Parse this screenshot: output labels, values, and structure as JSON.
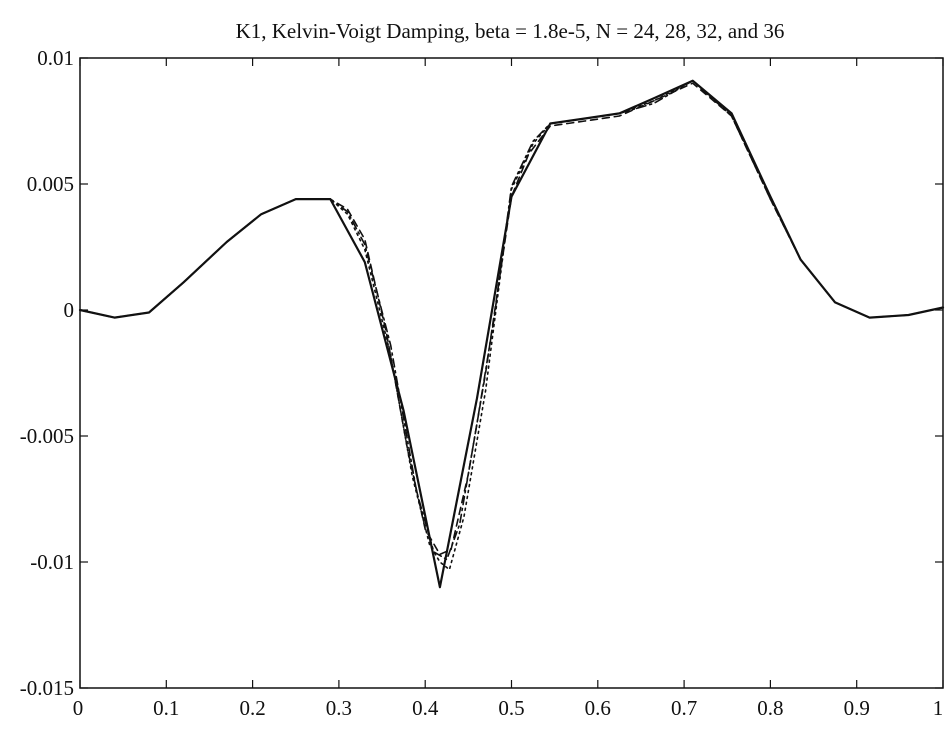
{
  "chart_data": {
    "type": "line",
    "title": "K1, Kelvin-Voigt Damping, beta = 1.8e-5, N = 24, 28, 32, and 36",
    "xlabel": "",
    "ylabel": "",
    "xlim": [
      0,
      1
    ],
    "ylim": [
      -0.015,
      0.01
    ],
    "grid": false,
    "x_ticks": [
      0,
      0.1,
      0.2,
      0.3,
      0.4,
      0.5,
      0.6,
      0.7,
      0.8,
      0.9,
      1
    ],
    "x_tick_labels": [
      "0",
      "0.1",
      "0.2",
      "0.3",
      "0.4",
      "0.5",
      "0.6",
      "0.7",
      "0.8",
      "0.9",
      "1"
    ],
    "y_ticks": [
      0.01,
      0.005,
      0,
      -0.005,
      -0.01,
      -0.015
    ],
    "y_tick_labels": [
      "0.01",
      "0.005",
      "0",
      "-0.005",
      "-0.01",
      "-0.015"
    ],
    "series": [
      {
        "style": "solid",
        "color": "#111111",
        "x": [
          0,
          0.04,
          0.08,
          0.12,
          0.17,
          0.21,
          0.25,
          0.29,
          0.33,
          0.375,
          0.417,
          0.46,
          0.5,
          0.545,
          0.585,
          0.625,
          0.665,
          0.71,
          0.755,
          0.8,
          0.835,
          0.875,
          0.915,
          0.96,
          1.0
        ],
        "y": [
          0.0,
          -0.0003,
          -0.0001,
          0.0011,
          0.0027,
          0.0038,
          0.0044,
          0.0044,
          0.0019,
          -0.004,
          -0.011,
          -0.0035,
          0.0045,
          0.0074,
          0.0076,
          0.0078,
          0.0084,
          0.0091,
          0.0078,
          0.0045,
          0.002,
          0.0003,
          -0.0003,
          -0.0002,
          0.0001
        ]
      },
      {
        "style": "dashed",
        "color": "#111111",
        "x": [
          0,
          0.04,
          0.08,
          0.12,
          0.17,
          0.21,
          0.25,
          0.29,
          0.31,
          0.33,
          0.355,
          0.38,
          0.4,
          0.417,
          0.43,
          0.45,
          0.47,
          0.5,
          0.52,
          0.545,
          0.585,
          0.625,
          0.665,
          0.71,
          0.755,
          0.8,
          0.835,
          0.875,
          0.915,
          0.96,
          1.0
        ],
        "y": [
          0.0,
          -0.0003,
          -0.0001,
          0.0011,
          0.0027,
          0.0038,
          0.0044,
          0.0044,
          0.004,
          0.0028,
          -0.0009,
          -0.0056,
          -0.0087,
          -0.0097,
          -0.0095,
          -0.0065,
          -0.0025,
          0.0045,
          0.0062,
          0.0073,
          0.0075,
          0.0077,
          0.0083,
          0.009,
          0.0077,
          0.0044,
          0.002,
          0.0003,
          -0.0003,
          -0.0002,
          0.0001
        ]
      },
      {
        "style": "dotted",
        "color": "#111111",
        "x": [
          0,
          0.04,
          0.08,
          0.12,
          0.17,
          0.21,
          0.25,
          0.29,
          0.31,
          0.33,
          0.36,
          0.385,
          0.405,
          0.417,
          0.428,
          0.445,
          0.47,
          0.5,
          0.525,
          0.545,
          0.585,
          0.625,
          0.665,
          0.71,
          0.755,
          0.8,
          0.835,
          0.875,
          0.915,
          0.96,
          1.0
        ],
        "y": [
          0.0,
          -0.0003,
          -0.0001,
          0.0011,
          0.0027,
          0.0038,
          0.0044,
          0.0044,
          0.0038,
          0.0024,
          -0.0018,
          -0.0066,
          -0.0093,
          -0.01,
          -0.0103,
          -0.0082,
          -0.0032,
          0.0048,
          0.0066,
          0.0074,
          0.0076,
          0.0078,
          0.0083,
          0.0091,
          0.0077,
          0.0045,
          0.002,
          0.0003,
          -0.0003,
          -0.0002,
          0.0001
        ]
      },
      {
        "style": "dashdot",
        "color": "#111111",
        "x": [
          0,
          0.04,
          0.08,
          0.12,
          0.17,
          0.21,
          0.25,
          0.29,
          0.31,
          0.33,
          0.36,
          0.39,
          0.41,
          0.425,
          0.44,
          0.46,
          0.48,
          0.5,
          0.525,
          0.545,
          0.585,
          0.625,
          0.665,
          0.71,
          0.755,
          0.8,
          0.835,
          0.875,
          0.915,
          0.96,
          1.0
        ],
        "y": [
          0.0,
          -0.0003,
          -0.0001,
          0.0011,
          0.0027,
          0.0038,
          0.0044,
          0.0044,
          0.0039,
          0.0026,
          -0.0014,
          -0.0072,
          -0.0096,
          -0.0099,
          -0.0085,
          -0.0045,
          -0.0003,
          0.0049,
          0.0067,
          0.0074,
          0.0076,
          0.0078,
          0.0082,
          0.0091,
          0.0077,
          0.0044,
          0.002,
          0.0003,
          -0.0003,
          -0.0002,
          0.0001
        ]
      }
    ]
  }
}
